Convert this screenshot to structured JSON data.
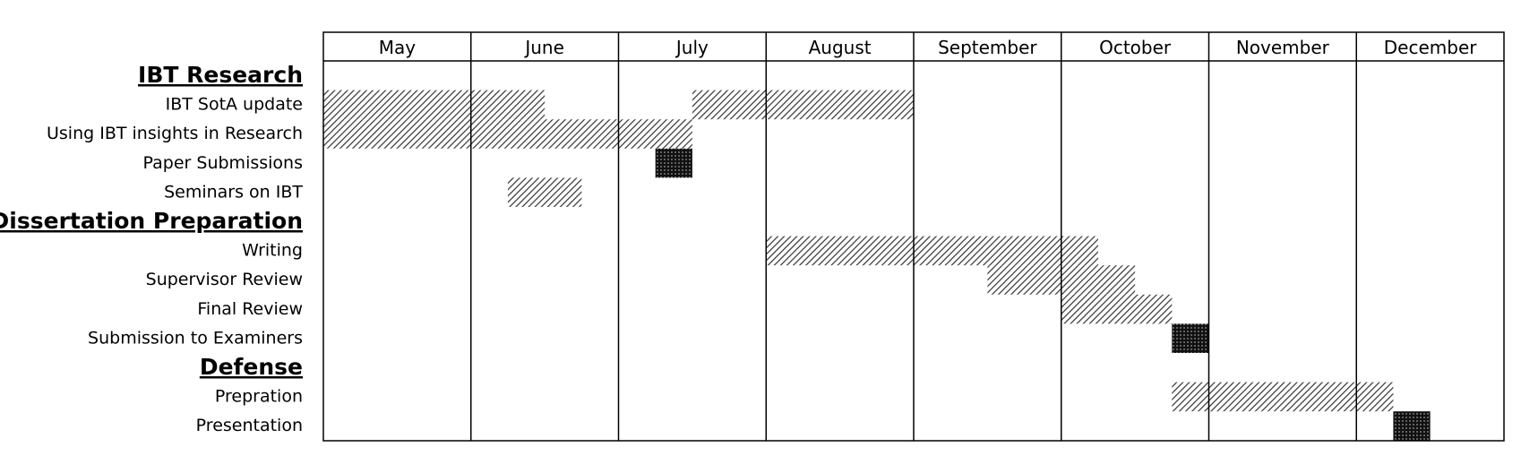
{
  "chart_data": {
    "type": "gantt",
    "months": [
      "May",
      "June",
      "July",
      "August",
      "September",
      "October",
      "November",
      "December"
    ],
    "rows": [
      {
        "kind": "section",
        "label": "IBT Research"
      },
      {
        "kind": "task",
        "label": "IBT SotA update",
        "bars": [
          {
            "start": 0,
            "end": 1.5,
            "style": "hatch"
          },
          {
            "start": 2.5,
            "end": 4,
            "style": "hatch"
          }
        ]
      },
      {
        "kind": "task",
        "label": "Using  IBT insights in Research",
        "bars": [
          {
            "start": 0,
            "end": 2.5,
            "style": "hatch"
          }
        ]
      },
      {
        "kind": "task",
        "label": "Paper Submissions",
        "bars": [
          {
            "start": 2.25,
            "end": 2.5,
            "style": "milestone"
          }
        ]
      },
      {
        "kind": "task",
        "label": "Seminars on IBT",
        "bars": [
          {
            "start": 1.25,
            "end": 1.75,
            "style": "hatch"
          }
        ]
      },
      {
        "kind": "section",
        "label": "Dissertation Preparation"
      },
      {
        "kind": "task",
        "label": "Writing",
        "bars": [
          {
            "start": 3,
            "end": 5.25,
            "style": "hatch"
          }
        ]
      },
      {
        "kind": "task",
        "label": "Supervisor Review",
        "bars": [
          {
            "start": 4.5,
            "end": 5.5,
            "style": "hatch"
          }
        ]
      },
      {
        "kind": "task",
        "label": "Final Review",
        "bars": [
          {
            "start": 5,
            "end": 5.75,
            "style": "hatch"
          }
        ]
      },
      {
        "kind": "task",
        "label": "Submission to Examiners",
        "bars": [
          {
            "start": 5.75,
            "end": 6,
            "style": "milestone"
          }
        ]
      },
      {
        "kind": "section",
        "label": "Defense"
      },
      {
        "kind": "task",
        "label": "Prepration",
        "bars": [
          {
            "start": 5.75,
            "end": 7.25,
            "style": "hatch"
          }
        ]
      },
      {
        "kind": "task",
        "label": "Presentation",
        "bars": [
          {
            "start": 7.25,
            "end": 7.5,
            "style": "milestone"
          }
        ]
      }
    ]
  }
}
